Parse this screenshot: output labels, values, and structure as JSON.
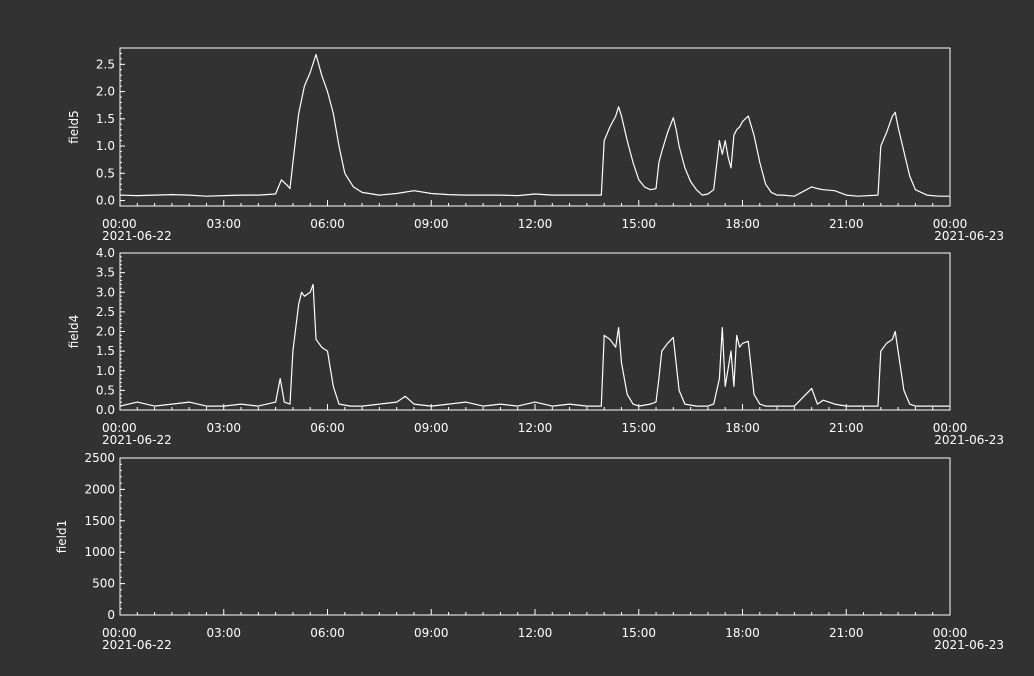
{
  "colors": {
    "background": "#323232",
    "foreground": "#ffffff"
  },
  "chart_data": [
    {
      "type": "line",
      "ylabel": "field5",
      "ylim": [
        -0.1,
        2.8
      ],
      "yticks": [
        0.0,
        0.5,
        1.0,
        1.5,
        2.0,
        2.5
      ],
      "ytick_labels": [
        "0.0",
        "0.5",
        "1.0",
        "1.5",
        "2.0",
        "2.5"
      ],
      "xlim": [
        "2021-06-22 00:00",
        "2021-06-23 00:00"
      ],
      "xtick_labels": [
        "00:00\n2021-06-22",
        "03:00",
        "06:00",
        "09:00",
        "12:00",
        "15:00",
        "18:00",
        "21:00",
        "00:00\n2021-06-23"
      ],
      "grid": false,
      "series": [
        {
          "x": [
            "00:00",
            "00:30",
            "01:00",
            "01:30",
            "02:00",
            "02:30",
            "03:00",
            "03:30",
            "04:00",
            "04:30",
            "04:40",
            "04:50",
            "04:55",
            "05:00",
            "05:10",
            "05:20",
            "05:30",
            "05:40",
            "05:50",
            "06:00",
            "06:10",
            "06:20",
            "06:30",
            "06:45",
            "07:00",
            "07:30",
            "08:00",
            "08:30",
            "09:00",
            "09:30",
            "10:00",
            "10:30",
            "11:00",
            "11:30",
            "12:00",
            "12:30",
            "13:00",
            "13:30",
            "13:55",
            "14:00",
            "14:10",
            "14:20",
            "14:25",
            "14:30",
            "14:40",
            "14:50",
            "15:00",
            "15:10",
            "15:20",
            "15:30",
            "15:35",
            "15:40",
            "15:50",
            "16:00",
            "16:05",
            "16:10",
            "16:20",
            "16:30",
            "16:40",
            "16:50",
            "17:00",
            "17:10",
            "17:20",
            "17:25",
            "17:30",
            "17:35",
            "17:40",
            "17:45",
            "17:50",
            "17:55",
            "18:00",
            "18:10",
            "18:20",
            "18:30",
            "18:40",
            "18:50",
            "19:00",
            "19:10",
            "19:30",
            "20:00",
            "20:10",
            "20:20",
            "20:40",
            "21:00",
            "21:20",
            "21:55",
            "22:00",
            "22:10",
            "22:20",
            "22:25",
            "22:30",
            "22:40",
            "22:50",
            "23:00",
            "23:20",
            "23:40",
            "23:59"
          ],
          "y": [
            0.1,
            0.09,
            0.1,
            0.11,
            0.1,
            0.08,
            0.09,
            0.1,
            0.1,
            0.12,
            0.38,
            0.28,
            0.22,
            0.7,
            1.6,
            2.1,
            2.35,
            2.68,
            2.3,
            2.0,
            1.6,
            1.0,
            0.5,
            0.25,
            0.15,
            0.1,
            0.13,
            0.18,
            0.13,
            0.11,
            0.1,
            0.1,
            0.1,
            0.09,
            0.12,
            0.1,
            0.1,
            0.1,
            0.1,
            1.1,
            1.35,
            1.55,
            1.72,
            1.55,
            1.1,
            0.7,
            0.38,
            0.25,
            0.2,
            0.22,
            0.7,
            0.9,
            1.25,
            1.52,
            1.3,
            1.0,
            0.6,
            0.35,
            0.2,
            0.1,
            0.12,
            0.2,
            1.1,
            0.85,
            1.1,
            0.8,
            0.6,
            1.2,
            1.3,
            1.35,
            1.45,
            1.55,
            1.2,
            0.7,
            0.3,
            0.15,
            0.1,
            0.1,
            0.08,
            0.25,
            0.22,
            0.2,
            0.18,
            0.1,
            0.08,
            0.1,
            1.0,
            1.25,
            1.55,
            1.62,
            1.35,
            0.9,
            0.45,
            0.2,
            0.1,
            0.08,
            0.08
          ]
        }
      ]
    },
    {
      "type": "line",
      "ylabel": "field4",
      "ylim": [
        0.0,
        4.0
      ],
      "yticks": [
        0.0,
        0.5,
        1.0,
        1.5,
        2.0,
        2.5,
        3.0,
        3.5,
        4.0
      ],
      "ytick_labels": [
        "0.0",
        "0.5",
        "1.0",
        "1.5",
        "2.0",
        "2.5",
        "3.0",
        "3.5",
        "4.0"
      ],
      "xlim": [
        "2021-06-22 00:00",
        "2021-06-23 00:00"
      ],
      "xtick_labels": [
        "00:00\n2021-06-22",
        "03:00",
        "06:00",
        "09:00",
        "12:00",
        "15:00",
        "18:00",
        "21:00",
        "00:00\n2021-06-23"
      ],
      "grid": false,
      "series": [
        {
          "x": [
            "00:00",
            "00:30",
            "01:00",
            "01:30",
            "02:00",
            "02:30",
            "03:00",
            "03:30",
            "04:00",
            "04:30",
            "04:38",
            "04:45",
            "04:55",
            "05:00",
            "05:10",
            "05:15",
            "05:20",
            "05:30",
            "05:35",
            "05:40",
            "05:50",
            "06:00",
            "06:10",
            "06:20",
            "06:40",
            "07:00",
            "07:30",
            "08:00",
            "08:15",
            "08:30",
            "09:00",
            "09:30",
            "10:00",
            "10:30",
            "11:00",
            "11:30",
            "12:00",
            "12:30",
            "13:00",
            "13:30",
            "13:55",
            "14:00",
            "14:10",
            "14:20",
            "14:25",
            "14:30",
            "14:40",
            "14:50",
            "15:00",
            "15:20",
            "15:30",
            "15:35",
            "15:40",
            "15:50",
            "16:00",
            "16:10",
            "16:20",
            "16:40",
            "17:00",
            "17:10",
            "17:20",
            "17:25",
            "17:30",
            "17:40",
            "17:45",
            "17:50",
            "17:55",
            "18:00",
            "18:10",
            "18:20",
            "18:30",
            "18:40",
            "19:00",
            "19:30",
            "20:00",
            "20:10",
            "20:20",
            "20:40",
            "21:00",
            "21:20",
            "21:55",
            "22:00",
            "22:10",
            "22:20",
            "22:25",
            "22:30",
            "22:40",
            "22:50",
            "23:00",
            "23:20",
            "23:40",
            "23:59"
          ],
          "y": [
            0.1,
            0.2,
            0.1,
            0.15,
            0.2,
            0.1,
            0.1,
            0.15,
            0.1,
            0.2,
            0.8,
            0.2,
            0.15,
            1.5,
            2.7,
            3.0,
            2.9,
            3.0,
            3.2,
            1.8,
            1.6,
            1.5,
            0.6,
            0.15,
            0.1,
            0.1,
            0.15,
            0.2,
            0.35,
            0.15,
            0.1,
            0.15,
            0.2,
            0.1,
            0.15,
            0.1,
            0.2,
            0.1,
            0.15,
            0.1,
            0.1,
            1.9,
            1.8,
            1.6,
            2.1,
            1.2,
            0.4,
            0.15,
            0.1,
            0.15,
            0.2,
            0.8,
            1.5,
            1.7,
            1.85,
            0.5,
            0.15,
            0.1,
            0.1,
            0.15,
            0.8,
            2.1,
            0.6,
            1.5,
            0.6,
            1.9,
            1.6,
            1.7,
            1.75,
            0.4,
            0.15,
            0.1,
            0.1,
            0.1,
            0.55,
            0.15,
            0.25,
            0.15,
            0.1,
            0.1,
            0.1,
            1.5,
            1.7,
            1.8,
            2.0,
            1.5,
            0.5,
            0.15,
            0.1,
            0.1,
            0.1,
            0.1
          ]
        }
      ]
    },
    {
      "type": "line",
      "ylabel": "field1",
      "ylim": [
        0,
        2500
      ],
      "yticks": [
        0,
        500,
        1000,
        1500,
        2000,
        2500
      ],
      "ytick_labels": [
        "0",
        "500",
        "1000",
        "1500",
        "2000",
        "2500"
      ],
      "xlim": [
        "2021-06-22 00:00",
        "2021-06-23 00:00"
      ],
      "xtick_labels": [
        "00:00\n2021-06-22",
        "03:00",
        "06:00",
        "09:00",
        "12:00",
        "15:00",
        "18:00",
        "21:00",
        "00:00\n2021-06-23"
      ],
      "grid": false,
      "series": []
    }
  ]
}
